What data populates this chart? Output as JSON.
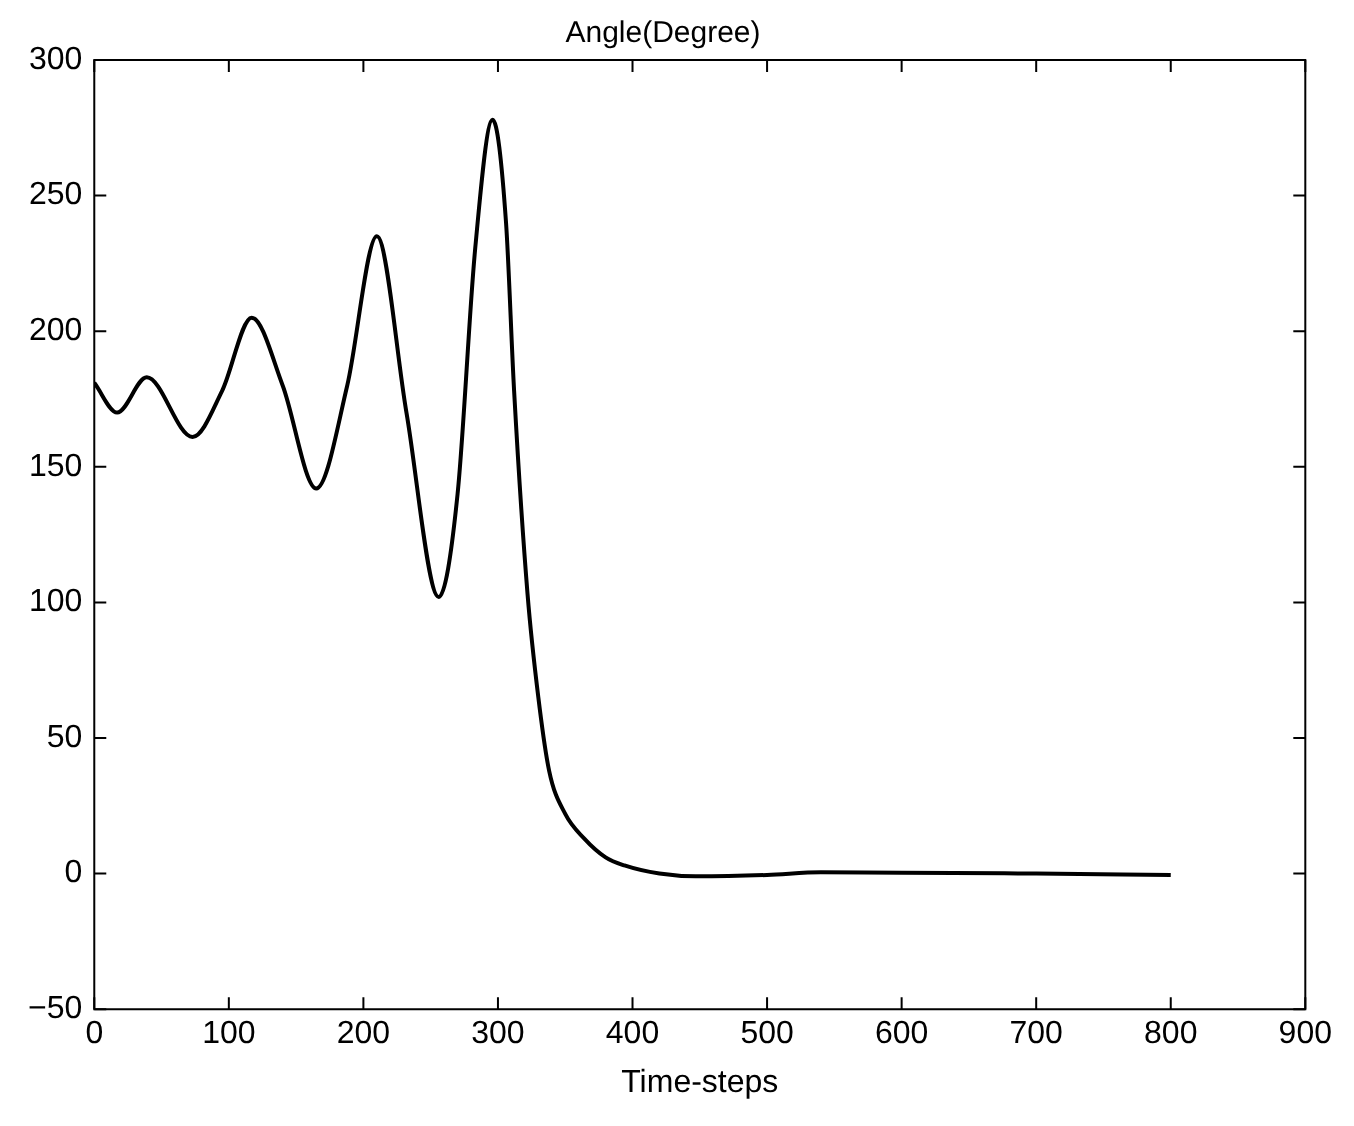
{
  "chart_data": {
    "type": "line",
    "title": "Angle(Degree)",
    "xlabel": "Time-steps",
    "x": [
      0,
      17,
      39,
      73,
      95,
      117,
      140,
      165,
      188,
      210,
      232,
      256,
      270,
      283,
      296,
      306,
      312,
      322,
      330,
      338,
      350,
      364,
      380,
      394,
      420,
      447,
      500,
      540,
      600,
      700,
      800
    ],
    "series": [
      {
        "color": "#000000",
        "values": [
          181,
          170,
          183,
          161,
          178,
          205,
          180,
          142,
          180,
          235,
          170,
          102,
          140,
          230,
          278,
          240,
          178,
          103,
          65,
          38,
          22,
          13,
          6,
          3,
          0,
          -1,
          -0.5,
          0.5,
          0.3,
          0,
          -0.5
        ]
      }
    ],
    "xlim": [
      0,
      900
    ],
    "xticks": [
      0,
      100,
      200,
      300,
      400,
      500,
      600,
      700,
      800,
      900
    ],
    "ylim": [
      -50,
      300
    ],
    "yticks": [
      -50,
      0,
      50,
      100,
      150,
      200,
      250,
      300
    ],
    "legend": false,
    "marker": "none",
    "line_style": "solid"
  }
}
